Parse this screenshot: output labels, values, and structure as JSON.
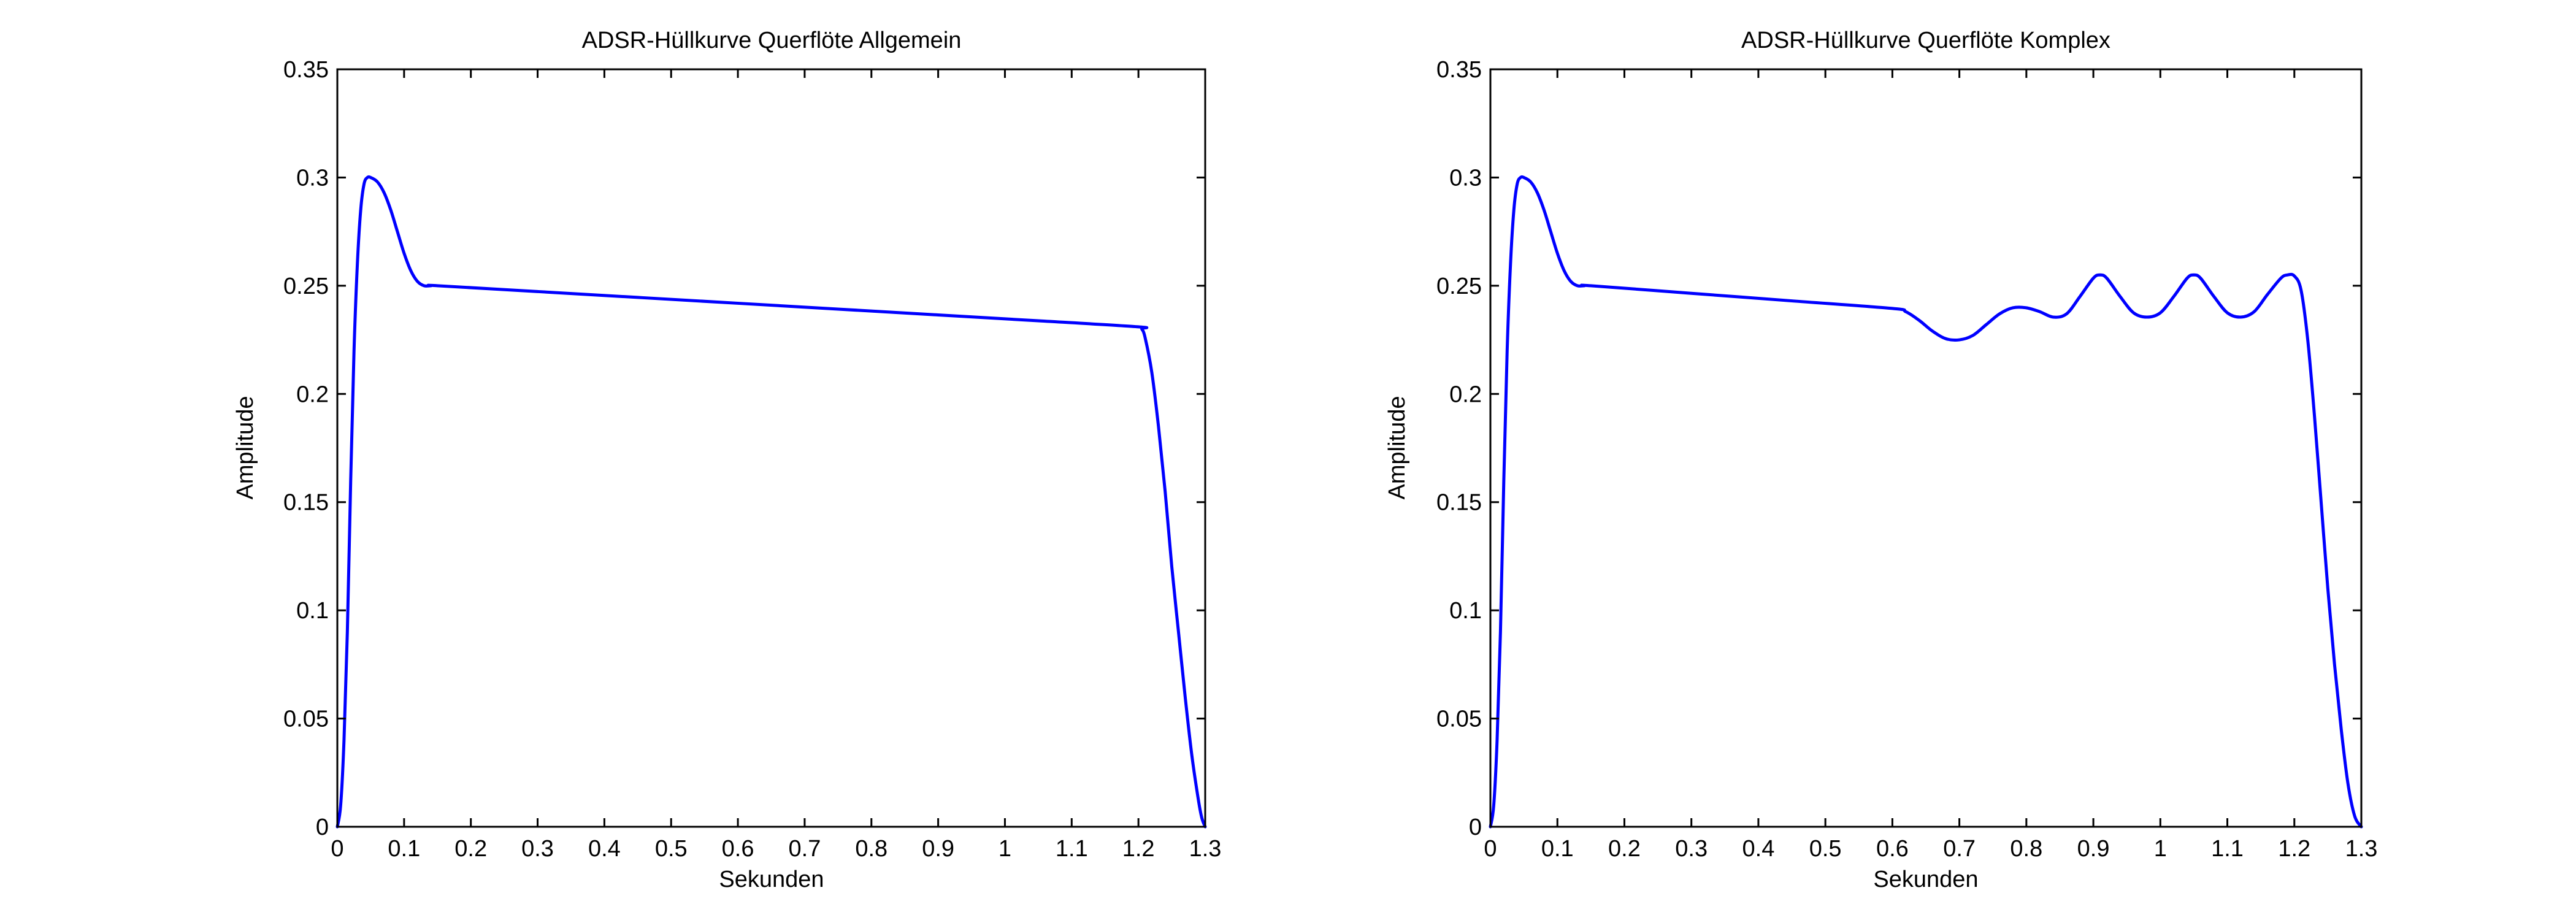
{
  "figure": {
    "background": "#ffffff",
    "line_color": "#0000ff",
    "axis_color": "#000000"
  },
  "chart_data": [
    {
      "type": "line",
      "title": "ADSR-Hüllkurve Querflöte Allgemein",
      "xlabel": "Sekunden",
      "ylabel": "Amplitude",
      "xlim": [
        0,
        1.3
      ],
      "ylim": [
        0,
        0.35
      ],
      "xticks": [
        "0",
        "0.1",
        "0.2",
        "0.3",
        "0.4",
        "0.5",
        "0.6",
        "0.7",
        "0.8",
        "0.9",
        "1",
        "1.1",
        "1.2",
        "1.3"
      ],
      "yticks": [
        "0",
        "0.05",
        "0.1",
        "0.15",
        "0.2",
        "0.25",
        "0.3",
        "0.35"
      ],
      "grid": false,
      "series": [
        {
          "color": "#0000ff",
          "x": [
            0,
            0.005,
            0.01,
            0.015,
            0.02,
            0.025,
            0.03,
            0.035,
            0.04,
            0.045,
            0.05,
            0.06,
            0.07,
            0.08,
            0.09,
            0.1,
            0.11,
            0.12,
            0.13,
            0.14,
            0.15,
            0.3,
            0.45,
            0.6,
            0.75,
            0.9,
            1.05,
            1.2,
            1.205,
            1.21,
            1.22,
            1.23,
            1.24,
            1.25,
            1.26,
            1.27,
            1.28,
            1.29,
            1.295,
            1.3
          ],
          "y": [
            0,
            0.01,
            0.04,
            0.09,
            0.16,
            0.22,
            0.26,
            0.285,
            0.297,
            0.3,
            0.3,
            0.298,
            0.293,
            0.285,
            0.275,
            0.265,
            0.257,
            0.252,
            0.25,
            0.25,
            0.25,
            0.2473,
            0.2446,
            0.2419,
            0.2392,
            0.2365,
            0.2338,
            0.231,
            0.23,
            0.226,
            0.21,
            0.185,
            0.155,
            0.12,
            0.09,
            0.06,
            0.033,
            0.012,
            0.004,
            0
          ]
        }
      ]
    },
    {
      "type": "line",
      "title": "ADSR-Hüllkurve Querflöte Komplex",
      "xlabel": "Sekunden",
      "ylabel": "Amplitude",
      "xlim": [
        0,
        1.3
      ],
      "ylim": [
        0,
        0.35
      ],
      "xticks": [
        "0",
        "0.1",
        "0.2",
        "0.3",
        "0.4",
        "0.5",
        "0.6",
        "0.7",
        "0.8",
        "0.9",
        "1",
        "1.1",
        "1.2",
        "1.3"
      ],
      "yticks": [
        "0",
        "0.05",
        "0.1",
        "0.15",
        "0.2",
        "0.25",
        "0.3",
        "0.35"
      ],
      "grid": false,
      "series": [
        {
          "color": "#0000ff",
          "x": [
            0,
            0.005,
            0.01,
            0.015,
            0.02,
            0.025,
            0.03,
            0.035,
            0.04,
            0.045,
            0.05,
            0.06,
            0.07,
            0.08,
            0.09,
            0.1,
            0.11,
            0.12,
            0.13,
            0.14,
            0.15,
            0.3,
            0.45,
            0.6,
            0.62,
            0.64,
            0.66,
            0.68,
            0.7,
            0.72,
            0.74,
            0.76,
            0.78,
            0.8,
            0.82,
            0.84,
            0.86,
            0.88,
            0.9,
            0.91,
            0.92,
            0.94,
            0.96,
            0.98,
            1.0,
            1.02,
            1.04,
            1.05,
            1.06,
            1.08,
            1.1,
            1.12,
            1.14,
            1.16,
            1.18,
            1.19,
            1.2,
            1.21,
            1.22,
            1.23,
            1.24,
            1.25,
            1.26,
            1.27,
            1.28,
            1.29,
            1.3
          ],
          "y": [
            0,
            0.01,
            0.04,
            0.09,
            0.16,
            0.22,
            0.26,
            0.285,
            0.297,
            0.3,
            0.3,
            0.298,
            0.293,
            0.285,
            0.275,
            0.265,
            0.257,
            0.252,
            0.25,
            0.25,
            0.25,
            0.2465,
            0.243,
            0.2395,
            0.238,
            0.234,
            0.229,
            0.2255,
            0.225,
            0.227,
            0.232,
            0.237,
            0.2398,
            0.2398,
            0.238,
            0.2355,
            0.237,
            0.245,
            0.2535,
            0.255,
            0.2535,
            0.245,
            0.2375,
            0.2355,
            0.2375,
            0.245,
            0.2535,
            0.255,
            0.2535,
            0.245,
            0.2375,
            0.2355,
            0.238,
            0.246,
            0.2535,
            0.255,
            0.2545,
            0.248,
            0.225,
            0.19,
            0.15,
            0.11,
            0.075,
            0.045,
            0.02,
            0.005,
            0
          ]
        }
      ]
    }
  ]
}
